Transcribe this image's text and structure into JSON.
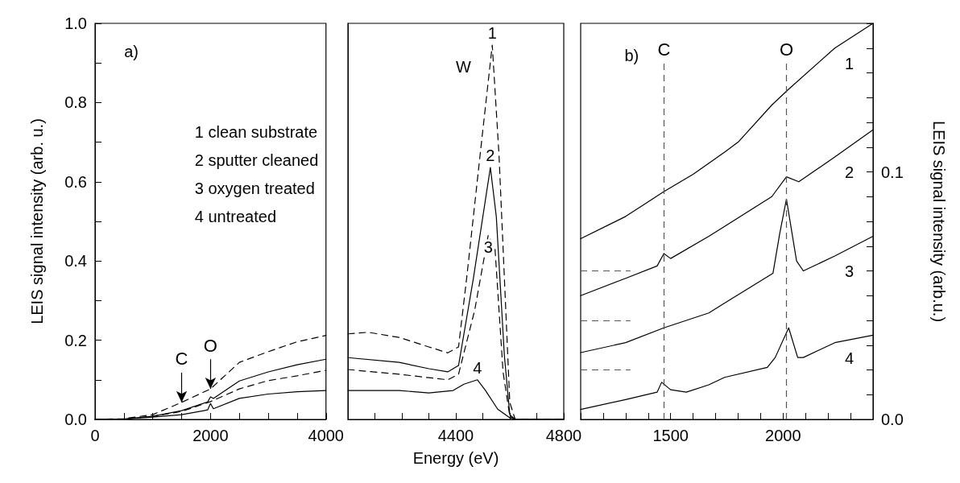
{
  "chart_data": [
    {
      "type": "line",
      "ylabel": "LEIS signal intensity (arb. u.)",
      "xlim": [
        0,
        4000
      ],
      "ylim": [
        0,
        1
      ],
      "marker": "none",
      "xticks": [
        0,
        {
          "value": 500,
          "label": null
        },
        {
          "value": 1000,
          "label": null
        },
        {
          "value": 1500,
          "label": null
        },
        2000,
        {
          "value": 2500,
          "label": null
        },
        {
          "value": 3000,
          "label": null
        },
        {
          "value": 3500,
          "label": null
        },
        4000
      ],
      "yticks": [
        {
          "value": 0,
          "label": "0.0"
        },
        {
          "value": 0.1,
          "label": null
        },
        {
          "value": 0.2,
          "label": "0.2"
        },
        {
          "value": 0.3,
          "label": null
        },
        {
          "value": 0.4,
          "label": "0.4"
        },
        {
          "value": 0.5,
          "label": null
        },
        {
          "value": 0.6,
          "label": "0.6"
        },
        {
          "value": 0.7,
          "label": null
        },
        {
          "value": 0.8,
          "label": "0.8"
        },
        {
          "value": 0.9,
          "label": null
        },
        {
          "value": 1,
          "label": "1.0"
        }
      ],
      "series": [
        {
          "color": "#000000",
          "line_style": "dashed",
          "x": [
            0,
            500,
            1000,
            1500,
            2000,
            2500,
            3000,
            3500,
            4000
          ],
          "values": [
            0,
            0.002,
            0.012,
            0.043,
            0.077,
            0.144,
            0.171,
            0.196,
            0.212
          ]
        },
        {
          "color": "#000000",
          "line_style": "solid",
          "x": [
            0,
            500,
            1000,
            1500,
            1950,
            2000,
            2050,
            2500,
            3000,
            3500,
            4000
          ],
          "values": [
            0,
            0.001,
            0.008,
            0.022,
            0.044,
            0.057,
            0.053,
            0.097,
            0.12,
            0.138,
            0.152
          ]
        },
        {
          "color": "#000000",
          "line_style": "dashed",
          "x": [
            0,
            500,
            1000,
            1500,
            2000,
            2500,
            3000,
            3500,
            4000
          ],
          "values": [
            0,
            0.001,
            0.008,
            0.02,
            0.045,
            0.077,
            0.098,
            0.11,
            0.124
          ]
        },
        {
          "color": "#000000",
          "line_style": "solid",
          "x": [
            0,
            500,
            1000,
            1500,
            1950,
            2000,
            2050,
            2500,
            3000,
            3500,
            4000
          ],
          "values": [
            0,
            0.001,
            0.006,
            0.012,
            0.024,
            0.04,
            0.027,
            0.053,
            0.064,
            0.07,
            0.073
          ]
        }
      ],
      "annotations": [
        "a)",
        "1 clean substrate",
        "2 sputter cleaned",
        "3 oxygen treated",
        "4 untreated",
        {
          "text": "C",
          "x": 1500,
          "y": 0.043
        },
        {
          "text": "O",
          "x": 2000,
          "y": 0.077
        }
      ]
    },
    {
      "type": "line",
      "xlabel": "Energy (eV)",
      "xlim": [
        4000,
        4800
      ],
      "ylim": [
        0,
        1
      ],
      "marker": "none",
      "tick_labels": "x",
      "xticks": [
        {
          "value": 4100,
          "label": null
        },
        {
          "value": 4200,
          "label": null
        },
        {
          "value": 4300,
          "label": null
        },
        4400,
        {
          "value": 4500,
          "label": null
        },
        {
          "value": 4600,
          "label": null
        },
        {
          "value": 4700,
          "label": null
        },
        4800
      ],
      "series": [
        {
          "name": "1",
          "color": "#000000",
          "line_style": "dashed",
          "x": [
            4000,
            4075,
            4190,
            4300,
            4370,
            4410,
            4440,
            4490,
            4535,
            4560,
            4580,
            4600,
            4620,
            4800
          ],
          "values": [
            0.216,
            0.22,
            0.207,
            0.183,
            0.168,
            0.183,
            0.356,
            0.668,
            0.945,
            0.668,
            0.356,
            0.043,
            0,
            0
          ]
        },
        {
          "name": "2",
          "color": "#000000",
          "line_style": "solid",
          "x": [
            4000,
            4190,
            4300,
            4370,
            4410,
            4465,
            4528,
            4550,
            4580,
            4600,
            4620,
            4800
          ],
          "values": [
            0.156,
            0.144,
            0.128,
            0.12,
            0.136,
            0.356,
            0.636,
            0.512,
            0.16,
            0.012,
            0,
            0
          ]
        },
        {
          "name": "3",
          "color": "#000000",
          "line_style": "dashed",
          "x": [
            4000,
            4190,
            4370,
            4410,
            4470,
            4520,
            4545,
            4575,
            4600,
            4620,
            4800
          ],
          "values": [
            0.126,
            0.114,
            0.1,
            0.114,
            0.276,
            0.465,
            0.433,
            0.12,
            0.008,
            0,
            0
          ]
        },
        {
          "name": "4",
          "color": "#000000",
          "line_style": "solid",
          "x": [
            4000,
            4190,
            4300,
            4390,
            4430,
            4480,
            4510,
            4555,
            4600,
            4620,
            4800
          ],
          "values": [
            0.073,
            0.073,
            0.067,
            0.073,
            0.089,
            0.1,
            0.073,
            0.026,
            0.004,
            0,
            0
          ]
        }
      ],
      "annotations": [
        "W"
      ]
    },
    {
      "type": "line",
      "y2label": "LEIS signal intensity (arb.u.)",
      "xlim": [
        1100,
        2400
      ],
      "y2lim": [
        0,
        0.16
      ],
      "marker": "none",
      "xticks": [
        {
          "value": 1100,
          "label": null
        },
        {
          "value": 1200,
          "label": null
        },
        {
          "value": 1300,
          "label": null
        },
        {
          "value": 1400,
          "label": null
        },
        1500,
        {
          "value": 1600,
          "label": null
        },
        {
          "value": 1700,
          "label": null
        },
        {
          "value": 1800,
          "label": null
        },
        {
          "value": 1900,
          "label": null
        },
        2000,
        {
          "value": 2100,
          "label": null
        },
        {
          "value": 2200,
          "label": null
        },
        {
          "value": 2300,
          "label": null
        },
        {
          "value": 2400,
          "label": null
        }
      ],
      "y2ticks": [
        {
          "value": 0,
          "label": "0.0"
        },
        {
          "value": 0.01,
          "label": null
        },
        {
          "value": 0.02,
          "label": null
        },
        {
          "value": 0.03,
          "label": null
        },
        {
          "value": 0.04,
          "label": null
        },
        {
          "value": 0.05,
          "label": null
        },
        {
          "value": 0.06,
          "label": null
        },
        {
          "value": 0.07,
          "label": null
        },
        {
          "value": 0.08,
          "label": null
        },
        {
          "value": 0.09,
          "label": null
        },
        {
          "value": 0.1,
          "label": "0.1"
        },
        {
          "value": 0.11,
          "label": null
        },
        {
          "value": 0.12,
          "label": null
        },
        {
          "value": 0.13,
          "label": null
        },
        {
          "value": 0.14,
          "label": null
        },
        {
          "value": 0.15,
          "label": null
        },
        {
          "value": 0.16,
          "label": null
        }
      ],
      "series": [
        {
          "name": "1",
          "color": "#000000",
          "axis": "y2",
          "x": [
            1100,
            1300,
            1470,
            1600,
            1740,
            1800,
            1950,
            2020,
            2230,
            2400
          ],
          "values": [
            0.073,
            0.082,
            0.092,
            0.099,
            0.108,
            0.112,
            0.127,
            0.133,
            0.15,
            0.16
          ]
        },
        {
          "name": "2",
          "color": "#000000",
          "axis": "y2",
          "x": [
            1100,
            1300,
            1440,
            1470,
            1500,
            1670,
            1740,
            1950,
            2015,
            2070,
            2230,
            2400
          ],
          "values": [
            0.05,
            0.057,
            0.062,
            0.067,
            0.065,
            0.074,
            0.078,
            0.09,
            0.098,
            0.096,
            0.106,
            0.117
          ]
        },
        {
          "name": "3",
          "color": "#000000",
          "axis": "y2",
          "x": [
            1100,
            1300,
            1470,
            1670,
            1740,
            1955,
            1985,
            2015,
            2060,
            2090,
            2230,
            2400
          ],
          "values": [
            0.027,
            0.031,
            0.037,
            0.043,
            0.047,
            0.059,
            0.075,
            0.089,
            0.064,
            0.06,
            0.066,
            0.074
          ]
        },
        {
          "name": "4",
          "color": "#000000",
          "axis": "y2",
          "x": [
            1100,
            1300,
            1440,
            1460,
            1500,
            1570,
            1670,
            1740,
            1930,
            1965,
            2025,
            2065,
            2090,
            2230,
            2400
          ],
          "values": [
            0.004,
            0.008,
            0.011,
            0.015,
            0.012,
            0.011,
            0.014,
            0.017,
            0.021,
            0.025,
            0.037,
            0.025,
            0.025,
            0.031,
            0.034
          ]
        }
      ],
      "ref_lines": [
        {
          "axis": "x",
          "value": 1470,
          "label": "C",
          "color": "#555555",
          "line_style": "dashed"
        },
        {
          "axis": "x",
          "value": 2015,
          "label": "O",
          "color": "#555555",
          "line_style": "dashed"
        },
        {
          "axis": "y2",
          "value": 0.06,
          "color": "#555555",
          "line_style": "dashed"
        },
        {
          "axis": "y2",
          "value": 0.04,
          "color": "#555555",
          "line_style": "dashed"
        },
        {
          "axis": "y2",
          "value": 0.02,
          "color": "#555555",
          "line_style": "dashed"
        }
      ],
      "annotations": [
        "b)"
      ]
    }
  ]
}
